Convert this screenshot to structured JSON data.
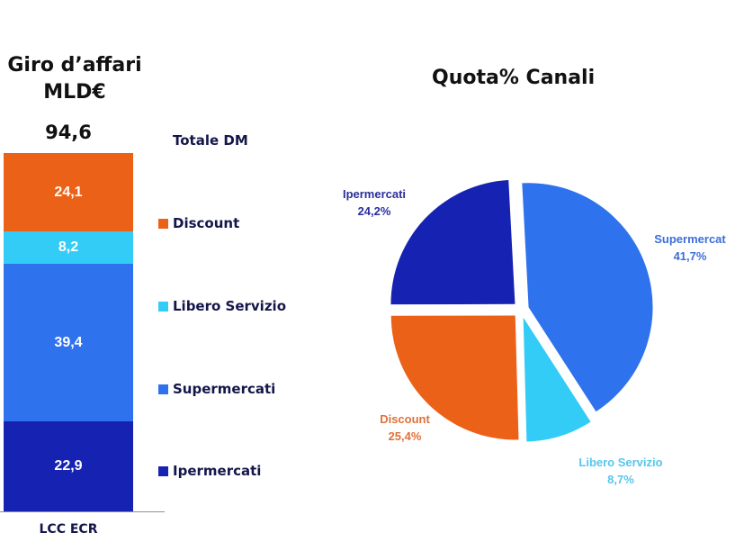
{
  "left_chart": {
    "title_line1": "Giro d’affari",
    "title_line2": "MLD€",
    "total": "94,6",
    "legend_title": "Totale DM",
    "x_label": "LCC ECR",
    "segments": [
      {
        "name": "Discount",
        "value": "24,1",
        "color": "#ec6118"
      },
      {
        "name": "Libero Servizio",
        "value": "8,2",
        "color": "#33ccf7"
      },
      {
        "name": "Supermercati",
        "value": "39,4",
        "color": "#2f72ee"
      },
      {
        "name": "Ipermercati",
        "value": "22,9",
        "color": "#1622b1"
      }
    ],
    "legend": [
      {
        "label": "Discount",
        "color": "#ec6118"
      },
      {
        "label": "Libero Servizio",
        "color": "#33ccf7"
      },
      {
        "label": "Supermercati",
        "color": "#2f72ee"
      },
      {
        "label": "Ipermercati",
        "color": "#1622b1"
      }
    ]
  },
  "right_chart": {
    "title": "Quota% Canali",
    "labels": [
      {
        "name": "Supermercat",
        "pct": "41,7%",
        "color": "#3b6fd8"
      },
      {
        "name": "Libero Servizio",
        "pct": "8,7%",
        "color": "#55c6ec"
      },
      {
        "name": "Discount",
        "pct": "25,4%",
        "color": "#e0713a"
      },
      {
        "name": "Ipermercati",
        "pct": "24,2%",
        "color": "#2a2f9a"
      }
    ]
  },
  "chart_data": [
    {
      "type": "bar",
      "stacked": true,
      "title": "Giro d’affari MLD€",
      "categories": [
        "LCC ECR"
      ],
      "total_label": "94,6",
      "legend_title": "Totale DM",
      "legend_position": "right",
      "series": [
        {
          "name": "Ipermercati",
          "values": [
            22.9
          ],
          "color": "#1622b1"
        },
        {
          "name": "Supermercati",
          "values": [
            39.4
          ],
          "color": "#2f72ee"
        },
        {
          "name": "Libero Servizio",
          "values": [
            8.2
          ],
          "color": "#33ccf7"
        },
        {
          "name": "Discount",
          "values": [
            24.1
          ],
          "color": "#ec6118"
        }
      ],
      "xlabel": "LCC ECR",
      "ylabel": "",
      "grid": false
    },
    {
      "type": "pie",
      "title": "Quota% Canali",
      "exploded": true,
      "slices": [
        {
          "label": "Supermercati",
          "value": 41.7,
          "color": "#2f72ee"
        },
        {
          "label": "Libero Servizio",
          "value": 8.7,
          "color": "#33ccf7"
        },
        {
          "label": "Discount",
          "value": 25.4,
          "color": "#ec6118"
        },
        {
          "label": "Ipermercati",
          "value": 24.2,
          "color": "#1622b1"
        }
      ],
      "unit": "%"
    }
  ]
}
